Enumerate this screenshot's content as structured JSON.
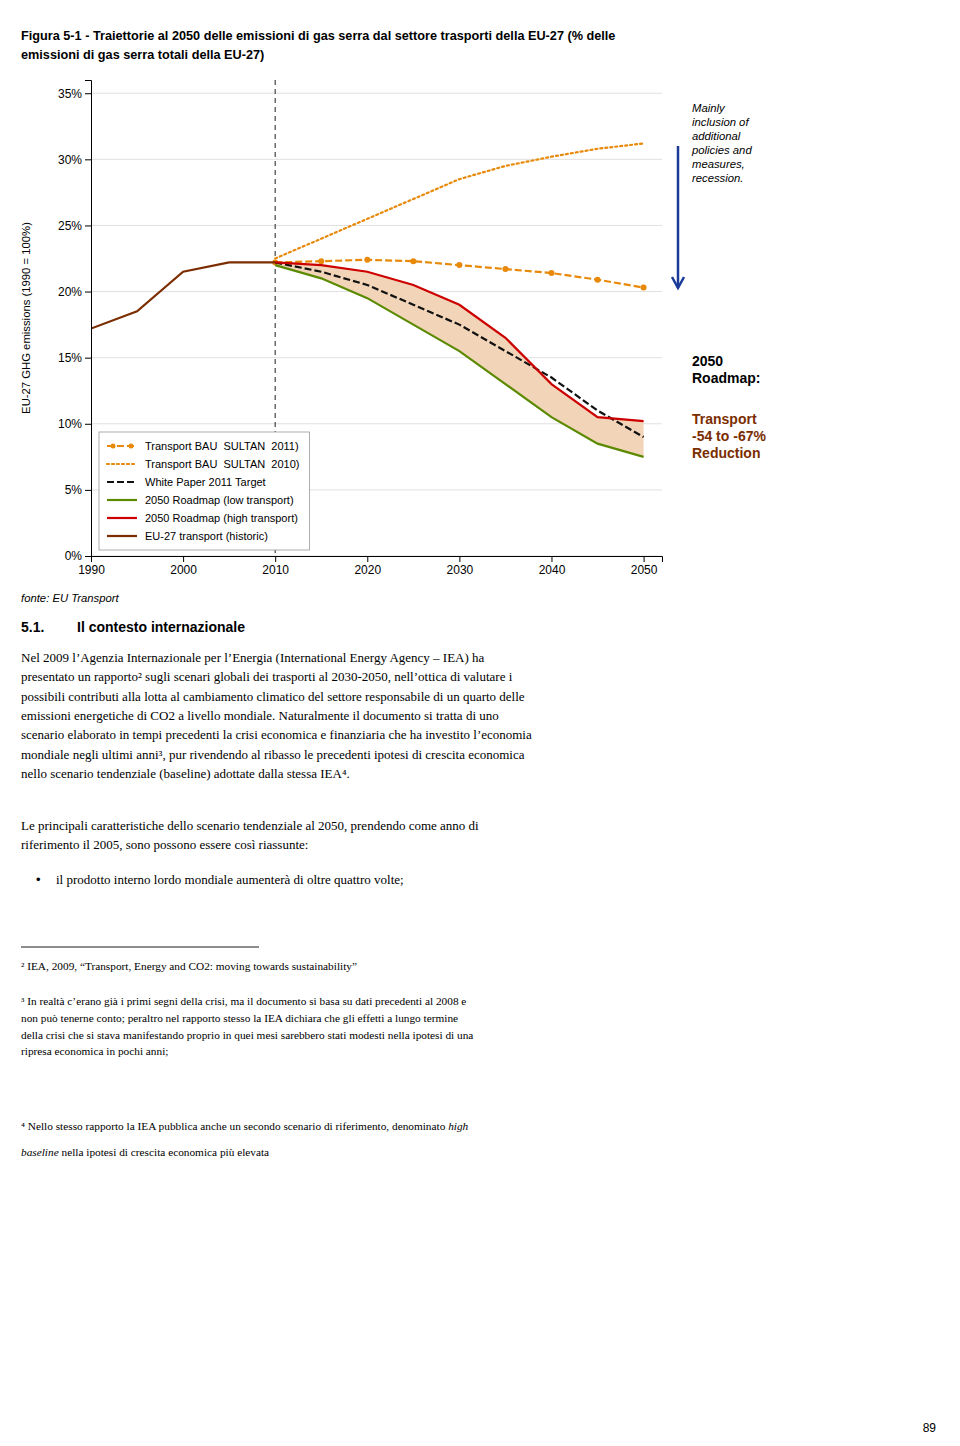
{
  "chart_data": {
    "type": "line",
    "title": "Figura 5-1 - Traiettorie al 2050 delle emissioni di gas serra dal settore trasporti della EU-27 (% delle\nemissioni di gas serra totali della EU-27)",
    "y_label": "EU-27 GHG emissions (1990 = 100%)",
    "x": [
      1990,
      1995,
      2000,
      2005,
      2010,
      2015,
      2020,
      2025,
      2030,
      2035,
      2040,
      2045,
      2050
    ],
    "xlim": [
      1990,
      2052
    ],
    "ylim": [
      0,
      36
    ],
    "xticks": [
      1990,
      2000,
      2010,
      2020,
      2030,
      2040,
      2050
    ],
    "yticks": [
      {
        "value": 0,
        "label": "0%"
      },
      {
        "value": 5,
        "label": "5%"
      },
      {
        "value": 10,
        "label": "10%"
      },
      {
        "value": 15,
        "label": "15%"
      },
      {
        "value": 20,
        "label": "20%"
      },
      {
        "value": 25,
        "label": "25%"
      },
      {
        "value": 30,
        "label": "30%"
      },
      {
        "value": 35,
        "label": "35%"
      }
    ],
    "grid": "y",
    "legend": "lower left",
    "series": [
      {
        "name": "Transport BAU  SULTAN  2011)",
        "color": "#E8890A",
        "line_style": "dashed",
        "marker": "circle",
        "values": [
          null,
          null,
          null,
          null,
          22.2,
          22.3,
          22.4,
          22.3,
          22.0,
          21.7,
          21.4,
          20.9,
          20.3
        ]
      },
      {
        "name": "Transport BAU  SULTAN  2010)",
        "color": "#E8890A",
        "line_style": "dotted",
        "values": [
          null,
          null,
          null,
          null,
          22.5,
          24.0,
          25.5,
          27.0,
          28.5,
          29.5,
          30.2,
          30.8,
          31.2
        ]
      },
      {
        "name": "White Paper 2011 Target",
        "color": "#111111",
        "line_style": "dashed",
        "values": [
          null,
          null,
          null,
          null,
          22.2,
          21.5,
          20.5,
          19.0,
          17.5,
          15.5,
          13.5,
          11.0,
          9.0
        ]
      },
      {
        "name": "2050 Roadmap (low transport)",
        "color": "#5B8A00",
        "line_style": "solid",
        "values": [
          null,
          null,
          null,
          null,
          22.0,
          21.0,
          19.5,
          17.5,
          15.5,
          13.0,
          10.5,
          8.5,
          7.5
        ]
      },
      {
        "name": "2050 Roadmap (high transport)",
        "color": "#CC0000",
        "line_style": "solid",
        "values": [
          null,
          null,
          null,
          null,
          22.2,
          22.0,
          21.5,
          20.5,
          19.0,
          16.5,
          13.0,
          10.5,
          10.2
        ]
      },
      {
        "name": "EU-27 transport (historic)",
        "color": "#7B2D00",
        "line_style": "solid",
        "values": [
          17.2,
          18.5,
          21.5,
          22.2,
          22.2,
          null,
          null,
          null,
          null,
          null,
          null,
          null,
          null
        ]
      }
    ],
    "band": {
      "x": [
        2010,
        2015,
        2020,
        2025,
        2030,
        2035,
        2040,
        2045,
        2050
      ],
      "low": [
        22.0,
        21.0,
        19.5,
        17.5,
        15.5,
        13.0,
        10.5,
        8.5,
        7.5
      ],
      "high": [
        22.2,
        22.0,
        21.5,
        20.5,
        19.0,
        16.5,
        13.0,
        10.5,
        10.2
      ],
      "color": "#F2D5B8"
    },
    "vline_x": 2010,
    "annotations": [
      {
        "text": "Mainly\ninclusion of\nadditional\npolicies and\nmeasures,\nrecession.",
        "arrow_color": "#1A3A9A"
      },
      {
        "text": "2050\nRoadmap:"
      },
      {
        "text": "Transport\n-54 to -67%\nReduction",
        "color": "#7B2D00"
      }
    ],
    "source": "fonte: EU Transport"
  },
  "page": {
    "section_number": "5.1.",
    "section_title": "Il contesto internazionale",
    "paragraphs": [
      "Nel 2009 l’Agenzia Internazionale per l’Energia (International Energy Agency – IEA) ha\npresentato un rapporto² sugli scenari globali dei trasporti al 2030-2050, nell’ottica di valutare i\npossibili contributi alla lotta al cambiamento climatico del settore responsabile di un quarto delle\nemissioni energetiche di CO2 a livello mondiale. Naturalmente il documento si tratta di uno\nscenario elaborato in tempi precedenti la crisi economica e finanziaria che ha investito l’economia\nmondiale negli ultimi anni³, pur rivendendo al ribasso le precedenti ipotesi di crescita economica\nnello scenario tendenziale (‪baseline‬) adottate dalla stessa IEA⁴.",
      "Le principali caratteristiche dello scenario tendenziale al 2050, prendendo come anno di\nriferimento il 2005, sono possono essere così riassunte:"
    ],
    "bullet_symbol": "•",
    "bullets": [
      "il prodotto interno lordo mondiale aumenterà di oltre quattro volte;"
    ],
    "footnotes": [
      "² IEA, 2009, “Transport, Energy and CO2: moving towards sustainability”",
      "³ In realtà c’erano già i primi segni della crisi, ma il documento si basa su dati precedenti al 2008 e\nnon può tenerne conto; peraltro nel rapporto stesso la IEA dichiara che gli effetti a lungo termine\ndella crisi che si stava manifestando proprio in quei mesi sarebbero stati modesti nella ipotesi di una\nripresa economica in pochi anni;"
    ],
    "footnote_4": [
      [
        {
          "text": "⁴ Nello stesso rapporto la IEA pubblica anche un secondo scenario di riferimento, denominato ",
          "style": "normal"
        },
        {
          "text": "high",
          "style": "italic"
        }
      ],
      [
        {
          "text": "baseline",
          "style": "italic"
        },
        {
          "text": " nella ipotesi di crescita economica più elevata",
          "style": "normal"
        }
      ]
    ],
    "page_number": "89"
  }
}
